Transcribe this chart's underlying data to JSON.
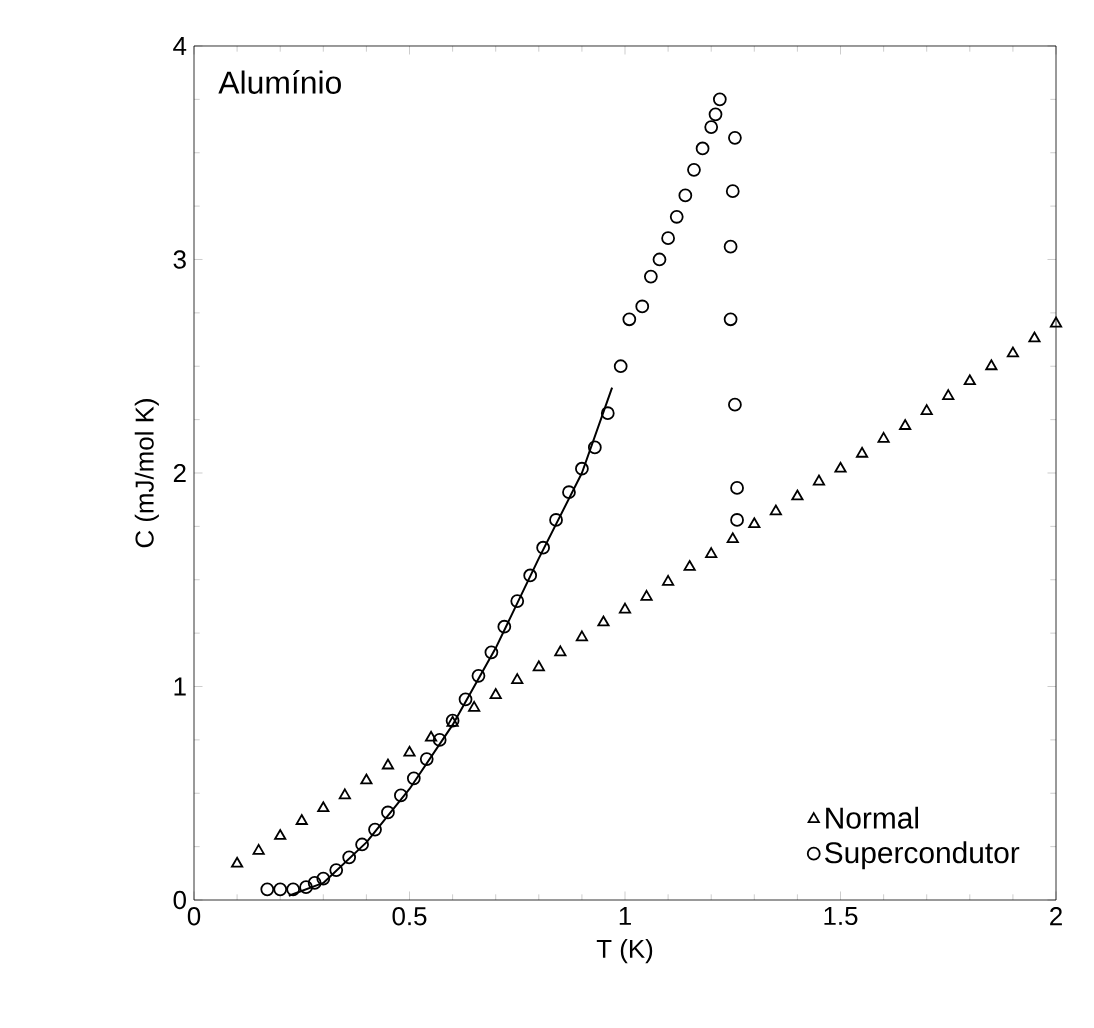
{
  "chart_data": {
    "type": "scatter",
    "xlabel": "T (K)",
    "ylabel": "C (mJ/mol K)",
    "annotations": [
      "Alumínio"
    ],
    "xlim": [
      0,
      2
    ],
    "ylim": [
      0,
      4
    ],
    "xticks": [
      0,
      0.5,
      1,
      1.5,
      2
    ],
    "yticks": [
      0,
      1,
      2,
      3,
      4
    ],
    "legend": "bottom right",
    "grid": false,
    "series": [
      {
        "name": "Normal",
        "marker": "triangle",
        "color": "#000000",
        "x": [
          0.1,
          0.15,
          0.2,
          0.25,
          0.3,
          0.35,
          0.4,
          0.45,
          0.5,
          0.55,
          0.6,
          0.65,
          0.7,
          0.75,
          0.8,
          0.85,
          0.9,
          0.95,
          1.0,
          1.05,
          1.1,
          1.15,
          1.2,
          1.25,
          1.3,
          1.35,
          1.4,
          1.45,
          1.5,
          1.55,
          1.6,
          1.65,
          1.7,
          1.75,
          1.8,
          1.85,
          1.9,
          1.95,
          2.0
        ],
        "values": [
          0.17,
          0.23,
          0.3,
          0.37,
          0.43,
          0.49,
          0.56,
          0.63,
          0.69,
          0.76,
          0.83,
          0.9,
          0.96,
          1.03,
          1.09,
          1.16,
          1.23,
          1.3,
          1.36,
          1.42,
          1.49,
          1.56,
          1.62,
          1.69,
          1.76,
          1.82,
          1.89,
          1.96,
          2.02,
          2.09,
          2.16,
          2.22,
          2.29,
          2.36,
          2.43,
          2.5,
          2.56,
          2.63,
          2.7
        ]
      },
      {
        "name": "Supercondutor",
        "marker": "circle",
        "color": "#000000",
        "x": [
          0.17,
          0.2,
          0.23,
          0.26,
          0.28,
          0.3,
          0.33,
          0.36,
          0.39,
          0.42,
          0.45,
          0.48,
          0.51,
          0.54,
          0.57,
          0.6,
          0.63,
          0.66,
          0.69,
          0.72,
          0.75,
          0.78,
          0.81,
          0.84,
          0.87,
          0.9,
          0.93,
          0.96,
          0.99,
          1.01,
          1.04,
          1.06,
          1.08,
          1.1,
          1.12,
          1.14,
          1.16,
          1.18,
          1.2,
          1.21,
          1.22,
          1.255,
          1.25,
          1.245,
          1.245,
          1.255,
          1.26,
          1.26
        ],
        "values": [
          0.05,
          0.05,
          0.05,
          0.06,
          0.08,
          0.1,
          0.14,
          0.2,
          0.26,
          0.33,
          0.41,
          0.49,
          0.57,
          0.66,
          0.75,
          0.84,
          0.94,
          1.05,
          1.16,
          1.28,
          1.4,
          1.52,
          1.65,
          1.78,
          1.91,
          2.02,
          2.12,
          2.28,
          2.5,
          2.72,
          2.78,
          2.92,
          3.0,
          3.1,
          3.2,
          3.3,
          3.42,
          3.52,
          3.62,
          3.68,
          3.75,
          3.57,
          3.32,
          3.06,
          2.72,
          2.32,
          1.93,
          1.78
        ]
      },
      {
        "type": "line",
        "marker": "none",
        "line_style": "solid",
        "color": "#000000",
        "x": [
          0.22,
          0.3,
          0.4,
          0.5,
          0.6,
          0.7,
          0.8,
          0.9,
          0.97
        ],
        "values": [
          0.02,
          0.08,
          0.27,
          0.52,
          0.82,
          1.18,
          1.6,
          2.0,
          2.4
        ]
      }
    ]
  }
}
